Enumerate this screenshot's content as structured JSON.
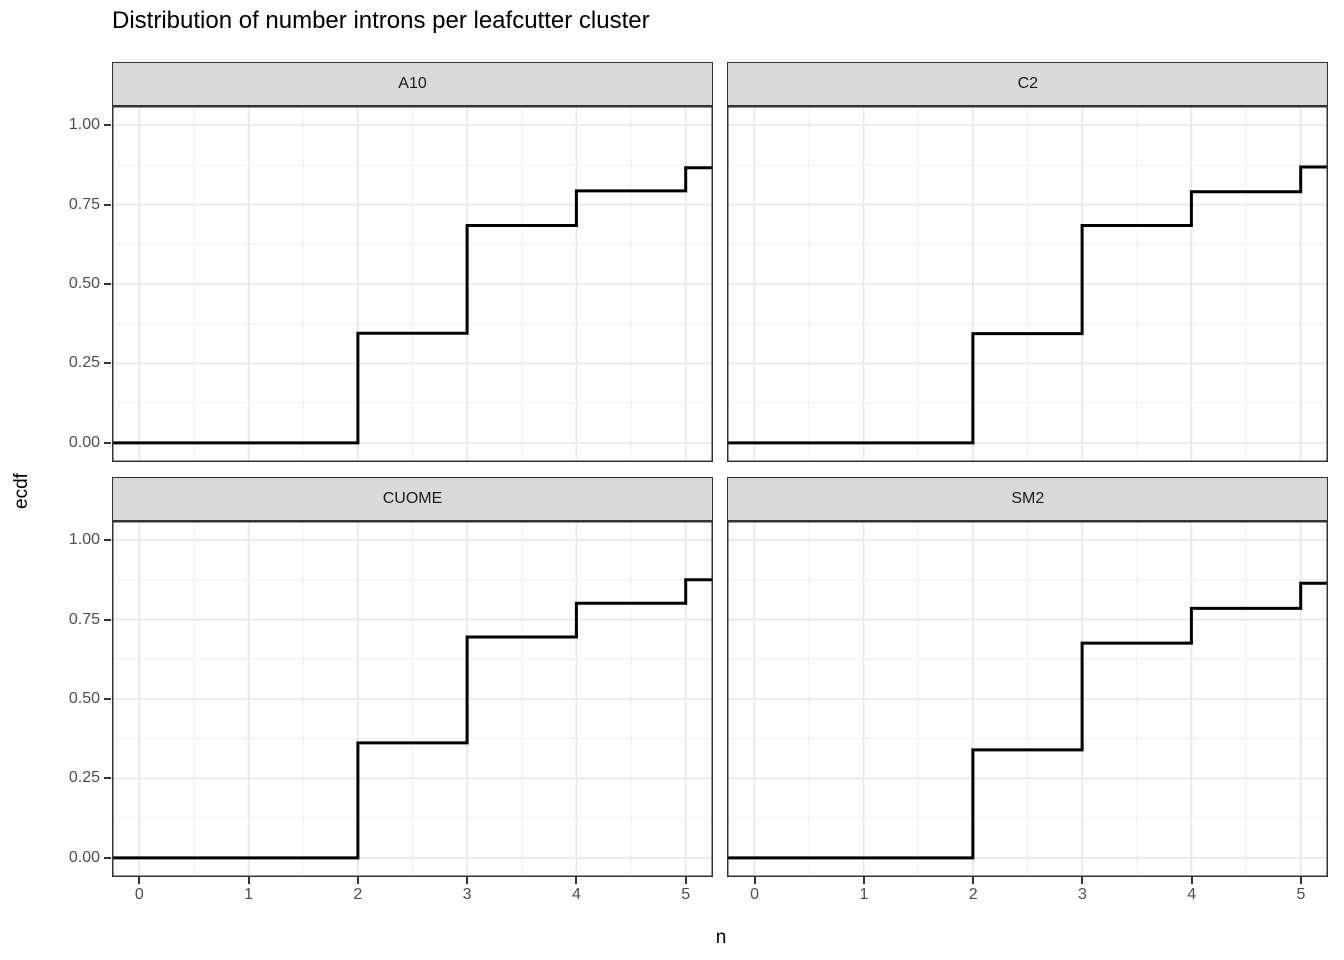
{
  "title": "Distribution of number introns per leafcutter cluster",
  "chart_data": {
    "type": "line",
    "subtype": "step-ecdf-faceted",
    "title": "Distribution of number introns per leafcutter cluster",
    "xlabel": "n",
    "ylabel": "ecdf",
    "grid": "on",
    "legend": "none",
    "xlim": [
      -0.25,
      5.25
    ],
    "ylim": [
      -0.06,
      1.06
    ],
    "x_ticks": [
      0,
      1,
      2,
      3,
      4,
      5
    ],
    "x_tick_labels": [
      "0",
      "1",
      "2",
      "3",
      "4",
      "5"
    ],
    "x_minor_ticks": [
      0.5,
      1.5,
      2.5,
      3.5,
      4.5
    ],
    "y_ticks": [
      0,
      0.25,
      0.5,
      0.75,
      1.0
    ],
    "y_tick_labels": [
      "0.00",
      "0.25",
      "0.50",
      "0.75",
      "1.00"
    ],
    "y_minor_ticks": [
      0.125,
      0.375,
      0.625,
      0.875
    ],
    "facets": [
      {
        "label": "A10",
        "step_x": [
          2,
          3,
          4,
          5
        ],
        "step_levels": [
          0.345,
          0.684,
          0.793,
          0.866
        ],
        "start_level": 0.0
      },
      {
        "label": "C2",
        "step_x": [
          2,
          3,
          4,
          5
        ],
        "step_levels": [
          0.344,
          0.684,
          0.79,
          0.868
        ],
        "start_level": 0.0
      },
      {
        "label": "CUOME",
        "step_x": [
          2,
          3,
          4,
          5
        ],
        "step_levels": [
          0.362,
          0.695,
          0.801,
          0.875
        ],
        "start_level": 0.0
      },
      {
        "label": "SM2",
        "step_x": [
          2,
          3,
          4,
          5
        ],
        "step_levels": [
          0.34,
          0.676,
          0.785,
          0.864
        ],
        "start_level": 0.0
      }
    ],
    "colors": {
      "line": "#000000",
      "panel_background": "#ffffff",
      "panel_border": "#333333",
      "grid_major": "#e7e7e7",
      "grid_minor": "#f1f1f1",
      "strip_fill": "#d9d9d9",
      "strip_border": "#333333",
      "strip_text": "#1a1a1a",
      "axis_text": "#4d4d4d",
      "tick_mark": "#333333",
      "title_text": "#000000"
    }
  }
}
